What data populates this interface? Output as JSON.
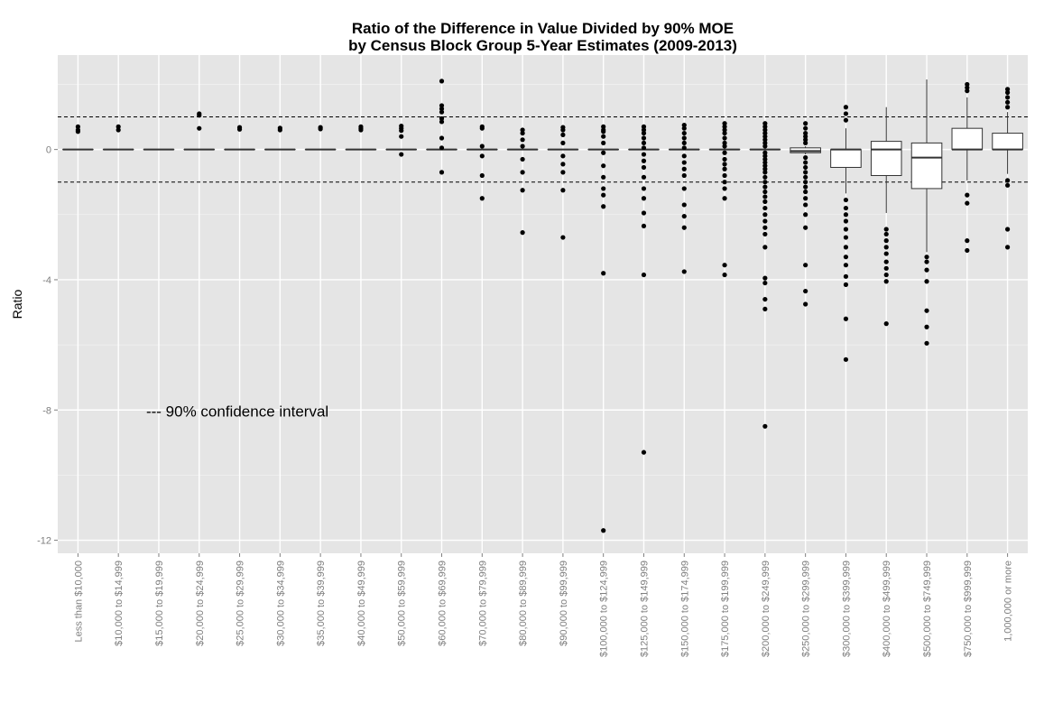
{
  "chart_data": {
    "type": "box",
    "title_line1": "Ratio of the Difference in Value Divided by 90% MOE",
    "title_line2": "by Census Block Group 5-Year Estimates (2009-2013)",
    "xlabel": "",
    "ylabel": "Ratio",
    "ylim": [
      -12.4,
      2.9
    ],
    "yticks": [
      0,
      -4,
      -8,
      -12
    ],
    "ytick_labels": [
      "0",
      "-4",
      "-8",
      "-12"
    ],
    "grid": true,
    "reference_lines": [
      1,
      -1
    ],
    "annotation": "--- 90% confidence interval",
    "categories": [
      "Less than $10,000",
      "$10,000 to $14,999",
      "$15,000 to $19,999",
      "$20,000 to $24,999",
      "$25,000 to $29,999",
      "$30,000 to $34,999",
      "$35,000 to $39,999",
      "$40,000 to $49,999",
      "$50,000 to $59,999",
      "$60,000 to $69,999",
      "$70,000 to $79,999",
      "$80,000 to $89,999",
      "$90,000 to $99,999",
      "$100,000 to $124,999",
      "$125,000 to $149,999",
      "$150,000 to $174,999",
      "$175,000 to $199,999",
      "$200,000 to $249,999",
      "$250,000 to $299,999",
      "$300,000 to $399,999",
      "$400,000 to $499,999",
      "$500,000 to $749,999",
      "$750,000 to $999,999",
      "1,000,000 or more"
    ],
    "boxes": [
      {
        "q1": 0,
        "median": 0,
        "q3": 0,
        "whisker_low": 0,
        "whisker_high": 0,
        "outliers": [
          0.7,
          0.6,
          0.55
        ]
      },
      {
        "q1": 0,
        "median": 0,
        "q3": 0,
        "whisker_low": 0,
        "whisker_high": 0,
        "outliers": [
          0.7,
          0.6
        ]
      },
      {
        "q1": 0,
        "median": 0,
        "q3": 0,
        "whisker_low": 0,
        "whisker_high": 0,
        "outliers": []
      },
      {
        "q1": 0,
        "median": 0,
        "q3": 0,
        "whisker_low": 0,
        "whisker_high": 0,
        "outliers": [
          1.1,
          1.05,
          0.65
        ]
      },
      {
        "q1": 0,
        "median": 0,
        "q3": 0,
        "whisker_low": 0,
        "whisker_high": 0,
        "outliers": [
          0.68,
          0.62
        ]
      },
      {
        "q1": 0,
        "median": 0,
        "q3": 0,
        "whisker_low": 0,
        "whisker_high": 0,
        "outliers": [
          0.66,
          0.6
        ]
      },
      {
        "q1": 0,
        "median": 0,
        "q3": 0,
        "whisker_low": 0,
        "whisker_high": 0,
        "outliers": [
          0.68,
          0.63
        ]
      },
      {
        "q1": 0,
        "median": 0,
        "q3": 0,
        "whisker_low": 0,
        "whisker_high": 0,
        "outliers": [
          0.7,
          0.65,
          0.6
        ]
      },
      {
        "q1": 0,
        "median": 0,
        "q3": 0,
        "whisker_low": 0,
        "whisker_high": 0,
        "outliers": [
          0.72,
          0.65,
          0.58,
          0.4,
          -0.15
        ]
      },
      {
        "q1": 0,
        "median": 0,
        "q3": 0,
        "whisker_low": 0,
        "whisker_high": 0,
        "outliers": [
          2.1,
          1.35,
          1.25,
          1.15,
          0.95,
          0.85,
          0.35,
          0.05,
          -0.7
        ]
      },
      {
        "q1": 0,
        "median": 0,
        "q3": 0,
        "whisker_low": 0,
        "whisker_high": 0,
        "outliers": [
          0.7,
          0.65,
          0.1,
          -0.2,
          -0.8,
          -1.5
        ]
      },
      {
        "q1": 0,
        "median": 0,
        "q3": 0,
        "whisker_low": 0,
        "whisker_high": 0,
        "outliers": [
          0.6,
          0.5,
          0.3,
          0.1,
          -0.3,
          -0.7,
          -1.25,
          -2.55
        ]
      },
      {
        "q1": 0,
        "median": 0,
        "q3": 0,
        "whisker_low": 0,
        "whisker_high": 0,
        "outliers": [
          0.68,
          0.6,
          0.45,
          0.2,
          -0.2,
          -0.45,
          -0.7,
          -1.25,
          -2.7
        ]
      },
      {
        "q1": 0,
        "median": 0,
        "q3": 0,
        "whisker_low": 0,
        "whisker_high": 0,
        "outliers": [
          0.7,
          0.6,
          0.55,
          0.4,
          0.2,
          -0.1,
          -0.5,
          -0.85,
          -1.2,
          -1.4,
          -1.75,
          -3.8,
          -11.7
        ]
      },
      {
        "q1": 0,
        "median": 0,
        "q3": 0,
        "whisker_low": 0,
        "whisker_high": 0,
        "outliers": [
          0.7,
          0.6,
          0.5,
          0.35,
          0.2,
          0.05,
          -0.15,
          -0.35,
          -0.55,
          -0.85,
          -1.2,
          -1.5,
          -1.95,
          -2.35,
          -3.85,
          -9.3
        ]
      },
      {
        "q1": 0,
        "median": 0,
        "q3": 0,
        "whisker_low": 0,
        "whisker_high": 0,
        "outliers": [
          0.75,
          0.65,
          0.5,
          0.35,
          0.2,
          0.05,
          -0.2,
          -0.4,
          -0.6,
          -0.8,
          -1.2,
          -1.7,
          -2.05,
          -2.4,
          -3.75
        ]
      },
      {
        "q1": 0,
        "median": 0,
        "q3": 0,
        "whisker_low": 0,
        "whisker_high": 0,
        "outliers": [
          0.8,
          0.7,
          0.6,
          0.5,
          0.35,
          0.2,
          0.1,
          -0.1,
          -0.3,
          -0.45,
          -0.6,
          -0.8,
          -1.0,
          -1.2,
          -1.5,
          -3.55,
          -3.85
        ]
      },
      {
        "q1": 0,
        "median": 0,
        "q3": 0,
        "whisker_low": 0,
        "whisker_high": 0,
        "outliers": [
          0.8,
          0.7,
          0.6,
          0.5,
          0.4,
          0.3,
          0.2,
          0.1,
          -0.1,
          -0.2,
          -0.3,
          -0.4,
          -0.5,
          -0.6,
          -0.7,
          -0.85,
          -1.0,
          -1.15,
          -1.3,
          -1.45,
          -1.6,
          -1.8,
          -2.0,
          -2.2,
          -2.4,
          -2.6,
          -3.0,
          -3.95,
          -4.1,
          -4.6,
          -4.9,
          -8.5
        ]
      },
      {
        "q1": -0.1,
        "median": -0.05,
        "q3": 0.05,
        "whisker_low": -0.15,
        "whisker_high": 0.1,
        "outliers": [
          0.8,
          0.65,
          0.5,
          0.4,
          0.3,
          0.2,
          -0.25,
          -0.4,
          -0.55,
          -0.7,
          -0.85,
          -1.0,
          -1.15,
          -1.3,
          -1.5,
          -1.7,
          -2.0,
          -2.4,
          -3.55,
          -4.35,
          -4.75
        ]
      },
      {
        "q1": -0.55,
        "median": 0,
        "q3": 0,
        "whisker_low": -1.35,
        "whisker_high": 0.65,
        "outliers": [
          1.3,
          1.1,
          0.9,
          -1.55,
          -1.8,
          -2.0,
          -2.2,
          -2.45,
          -2.7,
          -3.0,
          -3.3,
          -3.55,
          -3.9,
          -4.15,
          -5.2,
          -6.45
        ]
      },
      {
        "q1": -0.8,
        "median": 0,
        "q3": 0.25,
        "whisker_low": -1.95,
        "whisker_high": 1.3,
        "outliers": [
          -2.45,
          -2.6,
          -2.8,
          -3.0,
          -3.2,
          -3.45,
          -3.65,
          -3.85,
          -4.05,
          -5.35
        ]
      },
      {
        "q1": -1.2,
        "median": -0.25,
        "q3": 0.2,
        "whisker_low": -3.15,
        "whisker_high": 2.15,
        "outliers": [
          -3.3,
          -3.45,
          -3.7,
          -4.05,
          -4.95,
          -5.45,
          -5.95
        ]
      },
      {
        "q1": 0,
        "median": 0,
        "q3": 0.65,
        "whisker_low": -0.95,
        "whisker_high": 1.6,
        "outliers": [
          2.0,
          1.9,
          1.8,
          -1.4,
          -1.65,
          -2.8,
          -3.1
        ]
      },
      {
        "q1": 0,
        "median": 0,
        "q3": 0.5,
        "whisker_low": -0.75,
        "whisker_high": 1.15,
        "outliers": [
          1.85,
          1.75,
          1.6,
          1.45,
          1.3,
          -0.95,
          -1.1,
          -2.45,
          -3.0
        ]
      }
    ]
  },
  "colors": {
    "panel_background": "#e5e5e5",
    "grid_major": "#ffffff",
    "grid_minor": "#f2f2f2",
    "box_fill": "#ffffff",
    "box_stroke": "#333333",
    "point": "#000000",
    "tick_text": "#7f7f7f"
  }
}
